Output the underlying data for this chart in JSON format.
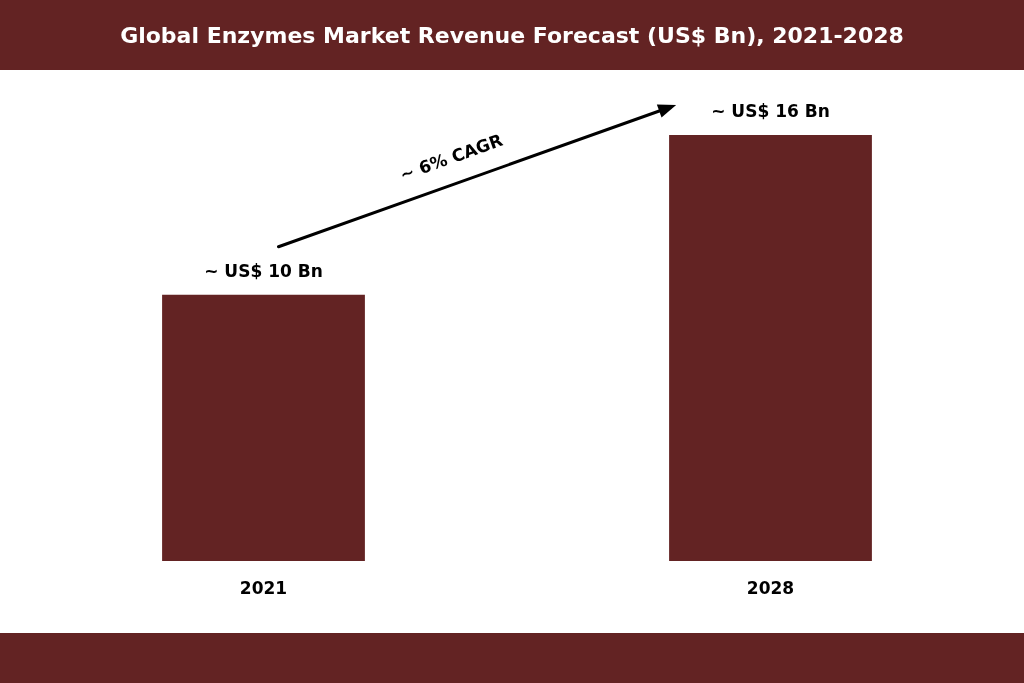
{
  "chart_data": {
    "type": "bar",
    "title": "Global Enzymes Market Revenue Forecast (US$ Bn), 2021-2028",
    "categories": [
      "2021",
      "2028"
    ],
    "values": [
      10,
      16
    ],
    "value_labels": [
      "~ US$ 10 Bn",
      "~ US$ 16 Bn"
    ],
    "color": "#632323",
    "annotations": [
      "~ 6% CAGR"
    ]
  }
}
